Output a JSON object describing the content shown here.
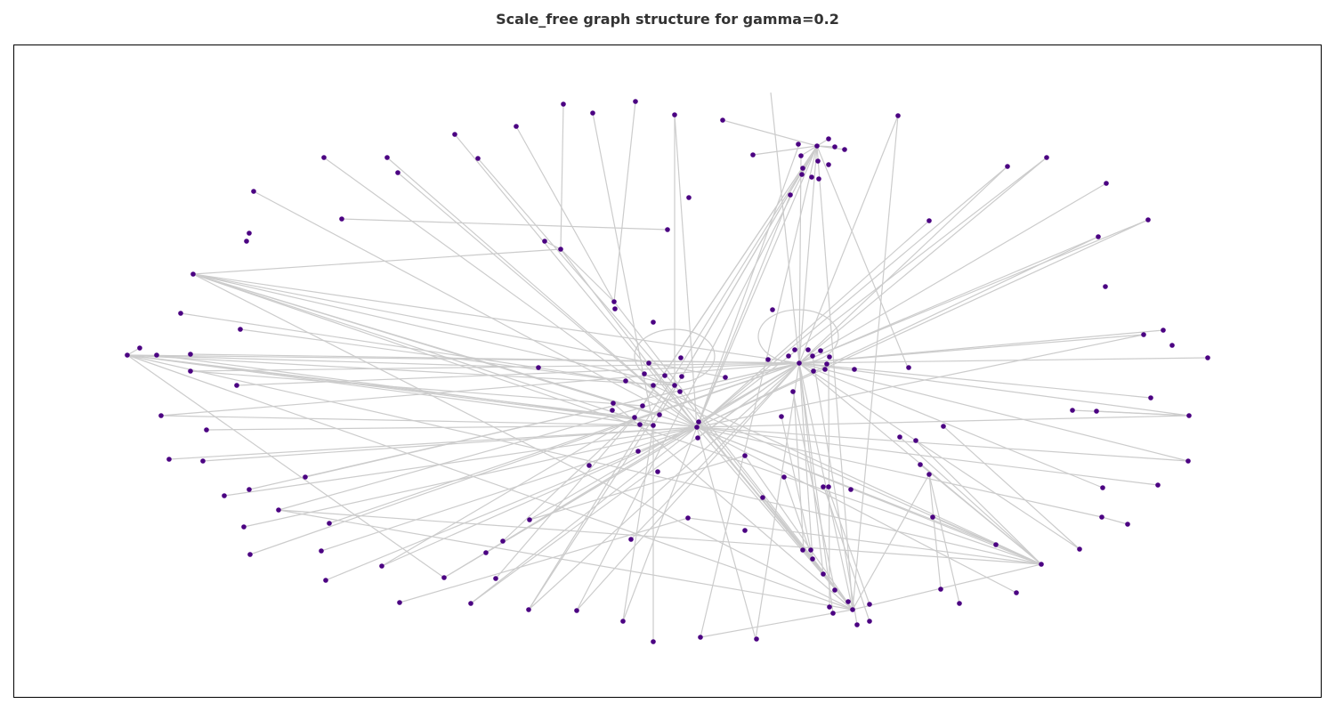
{
  "figure": {
    "title": "Scale_free graph structure for gamma=0.2"
  },
  "colors": {
    "node": "#4b0082",
    "edge": "#cccccc",
    "frame": "#000000",
    "title": "#333333"
  }
}
